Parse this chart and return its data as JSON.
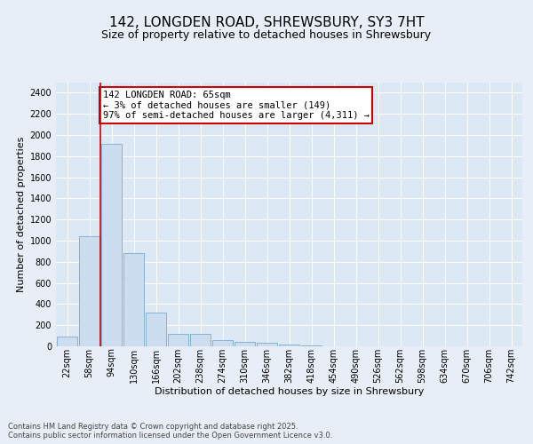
{
  "title_line1": "142, LONGDEN ROAD, SHREWSBURY, SY3 7HT",
  "title_line2": "Size of property relative to detached houses in Shrewsbury",
  "xlabel": "Distribution of detached houses by size in Shrewsbury",
  "ylabel": "Number of detached properties",
  "bar_labels": [
    "22sqm",
    "58sqm",
    "94sqm",
    "130sqm",
    "166sqm",
    "202sqm",
    "238sqm",
    "274sqm",
    "310sqm",
    "346sqm",
    "382sqm",
    "418sqm",
    "454sqm",
    "490sqm",
    "526sqm",
    "562sqm",
    "598sqm",
    "634sqm",
    "670sqm",
    "706sqm",
    "742sqm"
  ],
  "bar_values": [
    90,
    1040,
    1920,
    880,
    320,
    115,
    115,
    55,
    45,
    35,
    20,
    10,
    2,
    1,
    0,
    0,
    0,
    0,
    0,
    0,
    0
  ],
  "bar_color": "#ccddf0",
  "bar_edge_color": "#7aaacc",
  "vline_x": 1.5,
  "vline_color": "#cc0000",
  "annotation_text": "142 LONGDEN ROAD: 65sqm\n← 3% of detached houses are smaller (149)\n97% of semi-detached houses are larger (4,311) →",
  "annotation_box_facecolor": "#ffffff",
  "annotation_box_edgecolor": "#cc0000",
  "ylim": [
    0,
    2500
  ],
  "yticks": [
    0,
    200,
    400,
    600,
    800,
    1000,
    1200,
    1400,
    1600,
    1800,
    2000,
    2200,
    2400
  ],
  "bg_color": "#e8eef8",
  "plot_bg_color": "#dde8f5",
  "grid_color": "#ffffff",
  "footer_text": "Contains HM Land Registry data © Crown copyright and database right 2025.\nContains public sector information licensed under the Open Government Licence v3.0.",
  "title_fontsize": 11,
  "subtitle_fontsize": 9,
  "tick_fontsize": 7,
  "ylabel_fontsize": 8,
  "xlabel_fontsize": 8,
  "footer_fontsize": 6
}
